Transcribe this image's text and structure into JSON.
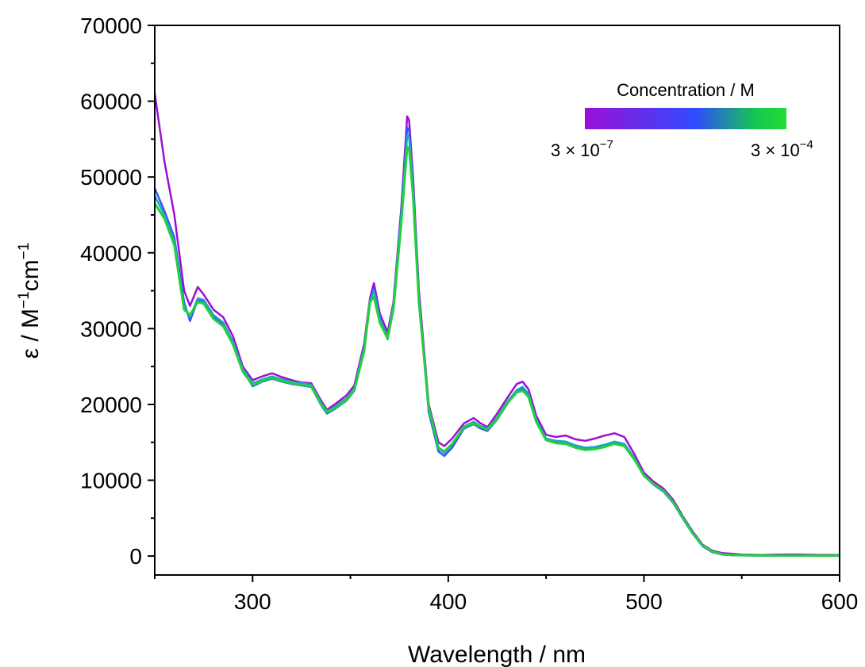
{
  "chart_data": {
    "type": "line",
    "title": "",
    "xlabel": "Wavelength / nm",
    "ylabel": "ε / M",
    "ylabel_unit_parts": {
      "M_exp": "−1",
      "cm": "cm",
      "cm_exp": "−1"
    },
    "xlim": [
      250,
      600
    ],
    "ylim": [
      -2500,
      70000
    ],
    "x_ticks": [
      300,
      400,
      500,
      600
    ],
    "y_ticks": [
      0,
      10000,
      20000,
      30000,
      40000,
      50000,
      60000,
      70000
    ],
    "x_tick_labels": [
      "300",
      "400",
      "500",
      "600"
    ],
    "y_tick_labels": [
      "0",
      "10000",
      "20000",
      "30000",
      "40000",
      "50000",
      "60000",
      "70000"
    ],
    "grid": false,
    "legend": {
      "title": "Concentration / M",
      "placement": "top-right",
      "gradient_colors": [
        "#9b10d6",
        "#2f4bff",
        "#16c84e",
        "#22dd33"
      ],
      "low_label": {
        "mantissa": "3 × 10",
        "exponent": "−7"
      },
      "high_label": {
        "mantissa": "3 × 10",
        "exponent": "−4"
      }
    },
    "x": [
      250,
      255,
      260,
      265,
      268,
      272,
      275,
      280,
      285,
      290,
      295,
      300,
      305,
      310,
      315,
      320,
      325,
      330,
      335,
      338,
      342,
      348,
      352,
      357,
      360,
      362,
      365,
      369,
      372,
      376,
      379,
      380,
      382,
      385,
      390,
      395,
      398,
      402,
      408,
      413,
      416,
      420,
      425,
      430,
      435,
      438,
      441,
      445,
      450,
      455,
      460,
      465,
      470,
      475,
      480,
      485,
      490,
      495,
      500,
      505,
      510,
      515,
      520,
      525,
      530,
      535,
      540,
      545,
      550,
      560,
      570,
      580,
      590,
      600
    ],
    "series": [
      {
        "color": "#9b10d6",
        "values": [
          61000,
          52000,
          45000,
          35000,
          33000,
          35500,
          34500,
          32500,
          31500,
          29000,
          25000,
          23200,
          23700,
          24100,
          23600,
          23200,
          22900,
          22800,
          20500,
          19300,
          20000,
          21200,
          22500,
          28000,
          34000,
          36000,
          32000,
          29500,
          33500,
          46000,
          58000,
          57500,
          50000,
          35000,
          20000,
          15000,
          14500,
          15500,
          17500,
          18200,
          17600,
          17000,
          18800,
          20800,
          22700,
          23000,
          22000,
          18500,
          16000,
          15700,
          15900,
          15400,
          15200,
          15500,
          15900,
          16200,
          15700,
          13500,
          11000,
          9800,
          8900,
          7400,
          5200,
          3200,
          1500,
          700,
          400,
          300,
          200,
          150,
          200,
          200,
          150,
          150
        ]
      },
      {
        "color": "#3355ff",
        "values": [
          48500,
          45500,
          42000,
          33500,
          31000,
          33800,
          33600,
          31500,
          30500,
          28000,
          24500,
          22400,
          23000,
          23400,
          23000,
          22700,
          22500,
          22300,
          19900,
          18800,
          19400,
          20500,
          21800,
          27300,
          33300,
          35200,
          31500,
          28600,
          32900,
          45300,
          56500,
          56200,
          49000,
          34000,
          19000,
          13800,
          13200,
          14300,
          16800,
          17400,
          16900,
          16500,
          18000,
          20000,
          21700,
          22100,
          21200,
          17800,
          15300,
          15000,
          15000,
          14500,
          14200,
          14300,
          14600,
          15000,
          14700,
          12900,
          10600,
          9400,
          8500,
          7000,
          4900,
          2900,
          1300,
          500,
          200,
          120,
          80,
          50,
          40,
          40,
          30,
          30
        ]
      },
      {
        "color": "#1fa3c8",
        "values": [
          47500,
          45000,
          41500,
          33000,
          31500,
          34000,
          33800,
          31800,
          30800,
          28300,
          24700,
          22800,
          23300,
          23700,
          23300,
          23000,
          22800,
          22600,
          20200,
          19100,
          19700,
          20800,
          22100,
          27500,
          33700,
          35000,
          31300,
          28900,
          33100,
          45000,
          55500,
          55200,
          48500,
          34000,
          19400,
          14200,
          13600,
          14700,
          17100,
          17700,
          17200,
          16800,
          18300,
          20300,
          21900,
          22300,
          21400,
          18000,
          15500,
          15200,
          15100,
          14600,
          14300,
          14400,
          14700,
          15100,
          14800,
          13000,
          10700,
          9500,
          8600,
          7100,
          5000,
          3000,
          1400,
          600,
          250,
          150,
          100,
          70,
          60,
          60,
          50,
          50
        ]
      },
      {
        "color": "#22d13b",
        "values": [
          46500,
          44500,
          41000,
          32500,
          31800,
          33500,
          33300,
          31300,
          30300,
          27900,
          24300,
          22600,
          23100,
          23500,
          23100,
          22800,
          22600,
          22400,
          20000,
          19000,
          19500,
          20600,
          21900,
          27000,
          33500,
          34200,
          30800,
          28700,
          32600,
          44000,
          54000,
          53800,
          47500,
          33500,
          19600,
          14300,
          13800,
          14800,
          17000,
          17500,
          17100,
          16700,
          18100,
          20100,
          21600,
          21800,
          21000,
          17700,
          15300,
          14900,
          14800,
          14300,
          14000,
          14100,
          14400,
          14800,
          14500,
          12800,
          10600,
          9500,
          8600,
          7100,
          5000,
          3000,
          1400,
          600,
          250,
          150,
          100,
          70,
          60,
          60,
          50,
          50
        ]
      }
    ]
  }
}
